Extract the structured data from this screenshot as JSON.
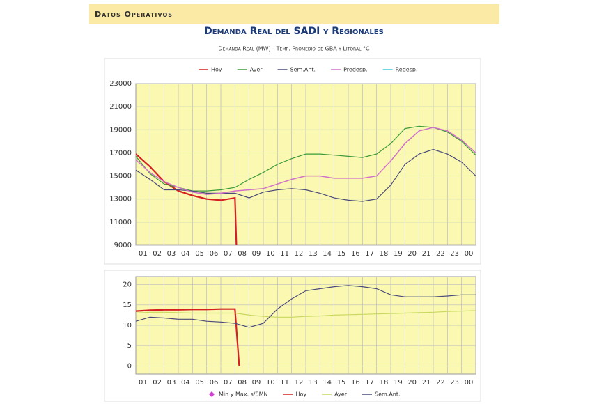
{
  "header": {
    "title": "Datos Operativos"
  },
  "chart_data": [
    {
      "type": "line",
      "title": "Demanda Real del SADI y Regionales",
      "subtitle": "Demanda Real (MW) - Temp. Promedio de GBA y Litoral °C",
      "x": [
        0,
        1,
        2,
        3,
        4,
        5,
        6,
        7,
        8,
        9,
        10,
        11,
        12,
        13,
        14,
        15,
        16,
        17,
        18,
        19,
        20,
        21,
        22,
        23,
        24
      ],
      "xlim": [
        0,
        24
      ],
      "xticks": [
        {
          "value": 1,
          "label": "01"
        },
        {
          "value": 2,
          "label": "02"
        },
        {
          "value": 3,
          "label": "03"
        },
        {
          "value": 4,
          "label": "04"
        },
        {
          "value": 5,
          "label": "05"
        },
        {
          "value": 6,
          "label": "06"
        },
        {
          "value": 7,
          "label": "07"
        },
        {
          "value": 8,
          "label": "08"
        },
        {
          "value": 9,
          "label": "09"
        },
        10,
        11,
        12,
        13,
        14,
        15,
        16,
        17,
        18,
        19,
        20,
        21,
        22,
        23,
        {
          "value": 24,
          "label": "00"
        }
      ],
      "ylim": [
        9000,
        23000
      ],
      "yticks": [
        9000,
        11000,
        13000,
        15000,
        17000,
        19000,
        21000,
        23000
      ],
      "grid": true,
      "legend": "top",
      "series": [
        {
          "name": "Hoy",
          "color": "#d42020",
          "width": 2.2,
          "x": [
            0,
            1,
            2,
            3,
            4,
            5,
            6,
            7,
            7.1
          ],
          "values": [
            16900,
            15800,
            14500,
            13700,
            13300,
            13000,
            12900,
            13100,
            9000
          ]
        },
        {
          "name": "Ayer",
          "color": "#3a9a3a",
          "width": 1.2,
          "values": [
            16700,
            15200,
            14300,
            14000,
            13700,
            13700,
            13800,
            14000,
            14700,
            15300,
            16000,
            16500,
            16900,
            16900,
            16800,
            16700,
            16600,
            16900,
            17800,
            19100,
            19300,
            19200,
            18800,
            18000,
            16800
          ]
        },
        {
          "name": "Sem.Ant.",
          "color": "#4a4a7a",
          "width": 1.2,
          "values": [
            15500,
            14700,
            13800,
            13800,
            13700,
            13500,
            13500,
            13500,
            13100,
            13600,
            13800,
            13900,
            13800,
            13500,
            13100,
            12900,
            12800,
            13000,
            14200,
            16000,
            16900,
            17300,
            16900,
            16200,
            15000
          ]
        },
        {
          "name": "Predesp.",
          "color": "#d070c8",
          "width": 1.5,
          "values": [
            16400,
            15300,
            14500,
            14000,
            13600,
            13400,
            13500,
            13700,
            13800,
            13900,
            14300,
            14700,
            15000,
            15000,
            14800,
            14800,
            14800,
            15000,
            16300,
            17800,
            18900,
            19200,
            18900,
            18100,
            17000
          ]
        },
        {
          "name": "Redesp.",
          "color": "#40c8d8",
          "width": 1.2,
          "values": [
            null,
            null,
            null,
            null,
            null,
            null,
            null,
            null,
            null,
            null,
            null,
            null,
            null,
            null,
            null,
            null,
            null,
            null,
            null,
            null,
            null,
            null,
            null,
            null,
            null
          ]
        }
      ]
    },
    {
      "type": "line",
      "x": [
        0,
        1,
        2,
        3,
        4,
        5,
        6,
        7,
        8,
        9,
        10,
        11,
        12,
        13,
        14,
        15,
        16,
        17,
        18,
        19,
        20,
        21,
        22,
        23,
        24
      ],
      "xlim": [
        0,
        24
      ],
      "xticks": [
        {
          "value": 1,
          "label": "01"
        },
        {
          "value": 2,
          "label": "02"
        },
        {
          "value": 3,
          "label": "03"
        },
        {
          "value": 4,
          "label": "04"
        },
        {
          "value": 5,
          "label": "05"
        },
        {
          "value": 6,
          "label": "06"
        },
        {
          "value": 7,
          "label": "07"
        },
        {
          "value": 8,
          "label": "08"
        },
        {
          "value": 9,
          "label": "09"
        },
        10,
        11,
        12,
        13,
        14,
        15,
        16,
        17,
        18,
        19,
        20,
        21,
        22,
        23,
        {
          "value": 24,
          "label": "00"
        }
      ],
      "ylim": [
        -2,
        22
      ],
      "yticks": [
        0,
        5,
        10,
        15,
        20
      ],
      "grid": true,
      "legend": "bottom",
      "series": [
        {
          "name": "Min y Max. s/SMN",
          "color": "#d040d0",
          "marker": "diamond",
          "values": [
            null,
            null,
            null,
            null,
            null,
            null,
            null,
            null,
            null,
            null,
            null,
            null,
            null,
            null,
            null,
            null,
            null,
            null,
            null,
            null,
            null,
            null,
            null,
            null,
            null
          ]
        },
        {
          "name": "Hoy",
          "color": "#d42020",
          "width": 2.2,
          "x": [
            0,
            1,
            2,
            3,
            4,
            5,
            6,
            7,
            7.3
          ],
          "values": [
            13.5,
            13.7,
            13.8,
            13.8,
            13.9,
            13.9,
            14,
            14,
            0
          ]
        },
        {
          "name": "Ayer",
          "color": "#c8d860",
          "width": 1.2,
          "values": [
            13,
            13.2,
            13.2,
            13.1,
            13,
            13,
            13,
            13,
            12.5,
            12.2,
            12,
            12,
            12.2,
            12.3,
            12.5,
            12.6,
            12.7,
            12.8,
            12.9,
            13,
            13.1,
            13.2,
            13.4,
            13.5,
            13.6
          ]
        },
        {
          "name": "Sem.Ant.",
          "color": "#4a4a7a",
          "width": 1.2,
          "values": [
            11,
            12,
            11.8,
            11.5,
            11.5,
            11,
            10.8,
            10.5,
            9.5,
            10.5,
            14,
            16.5,
            18.5,
            19,
            19.5,
            19.8,
            19.5,
            19,
            17.5,
            17,
            17,
            17,
            17.2,
            17.5,
            17.5
          ]
        }
      ]
    }
  ]
}
